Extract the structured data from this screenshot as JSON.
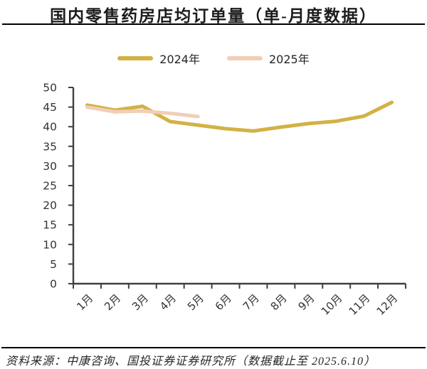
{
  "title": "国内零售药房店均订单量（单-月度数据）",
  "legend": {
    "items": [
      {
        "label": "2024年",
        "color": "#D3B145"
      },
      {
        "label": "2025年",
        "color": "#F1CEB6"
      }
    ]
  },
  "source_note": "资料来源：中康咨询、国投证券证券研究所（数据截止至 2025.6.10）",
  "colors": {
    "series_2024": "#D3B145",
    "series_2025": "#F1CEB6",
    "axis": "#404040",
    "tick_label": "#333333",
    "title_text": "#1C1C1C",
    "rule": "#000000"
  },
  "chart_data": {
    "type": "line",
    "title": "国内零售药房店均订单量（单-月度数据）",
    "categories": [
      "1月",
      "2月",
      "3月",
      "4月",
      "5月",
      "6月",
      "7月",
      "8月",
      "9月",
      "10月",
      "11月",
      "12月"
    ],
    "series": [
      {
        "name": "2024年",
        "color": "#D3B145",
        "values": [
          45.5,
          44.2,
          45.2,
          41.3,
          40.4,
          39.5,
          38.9,
          39.9,
          40.8,
          41.4,
          42.7,
          46.2
        ]
      },
      {
        "name": "2025年",
        "color": "#F1CEB6",
        "values": [
          45.0,
          43.8,
          44.0,
          43.4,
          42.6
        ]
      }
    ],
    "ylim": [
      0,
      50
    ],
    "ytick_step": 5,
    "xlabel": "",
    "ylabel": "",
    "grid": false,
    "legend_position": "top"
  }
}
